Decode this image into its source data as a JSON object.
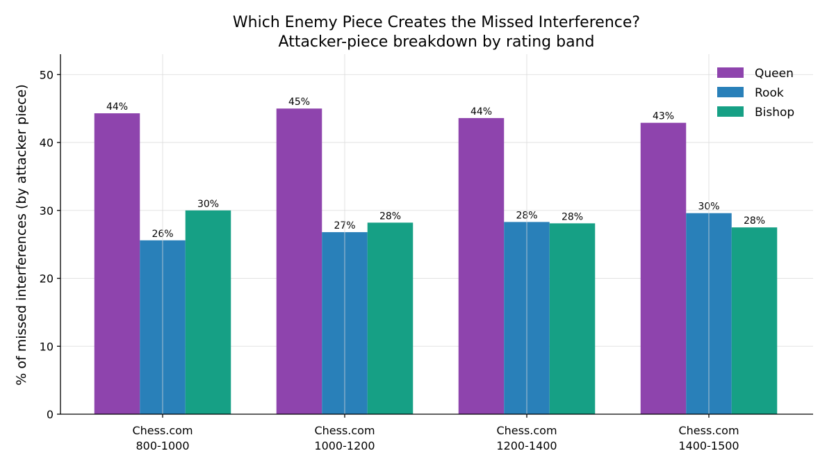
{
  "chart_data": {
    "type": "bar",
    "title": "Which Enemy Piece Creates the Missed Interference?",
    "subtitle": "Attacker-piece breakdown by rating band",
    "xlabel": "",
    "ylabel": "% of missed interferences (by attacker piece)",
    "ylim": [
      0,
      53
    ],
    "yticks": [
      0,
      10,
      20,
      30,
      40,
      50
    ],
    "grid": true,
    "legend_position": "top-right",
    "categories": [
      [
        "Chess.com",
        "800-1000"
      ],
      [
        "Chess.com",
        "1000-1200"
      ],
      [
        "Chess.com",
        "1200-1400"
      ],
      [
        "Chess.com",
        "1400-1500"
      ]
    ],
    "series": [
      {
        "name": "Queen",
        "color": "#8e44ad",
        "values": [
          44.3,
          45.0,
          43.6,
          42.9
        ],
        "labels": [
          "44%",
          "45%",
          "44%",
          "43%"
        ]
      },
      {
        "name": "Rook",
        "color": "#2980b9",
        "values": [
          25.6,
          26.8,
          28.3,
          29.6
        ],
        "labels": [
          "26%",
          "27%",
          "28%",
          "30%"
        ]
      },
      {
        "name": "Bishop",
        "color": "#16a085",
        "values": [
          30.0,
          28.2,
          28.1,
          27.5
        ],
        "labels": [
          "30%",
          "28%",
          "28%",
          "28%"
        ]
      }
    ]
  }
}
